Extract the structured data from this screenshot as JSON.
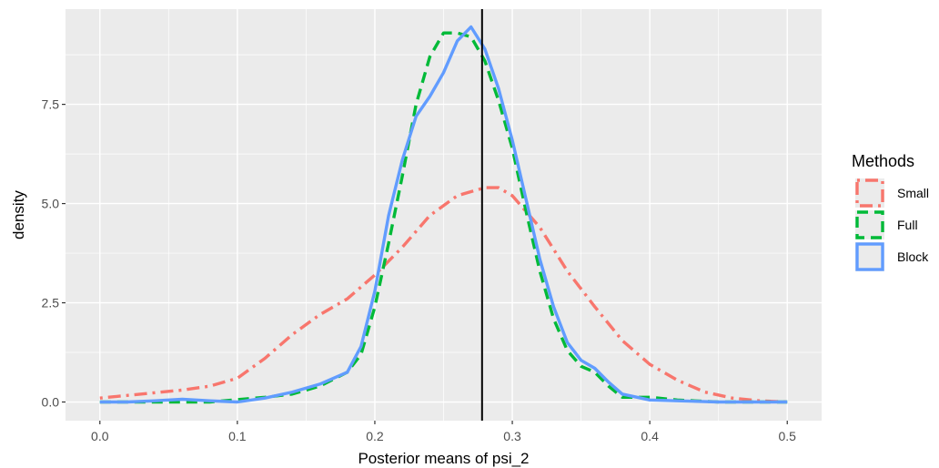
{
  "chart_data": {
    "type": "line",
    "title": "",
    "xlabel": "Posterior means of psi_2",
    "ylabel": "density",
    "xlim": [
      -0.025,
      0.525
    ],
    "ylim": [
      -0.47,
      9.9
    ],
    "x_ticks": [
      0.0,
      0.1,
      0.2,
      0.3,
      0.4,
      0.5
    ],
    "x_tick_labels": [
      "0.0",
      "0.1",
      "0.2",
      "0.3",
      "0.4",
      "0.5"
    ],
    "y_ticks": [
      0.0,
      2.5,
      5.0,
      7.5
    ],
    "y_tick_labels": [
      "0.0",
      "2.5",
      "5.0",
      "7.5"
    ],
    "grid": true,
    "panel_background": "#ebebeb",
    "vertical_line": {
      "x": 0.278,
      "color": "#000000"
    },
    "legend": {
      "title": "Methods",
      "position": "right"
    },
    "series": [
      {
        "name": "Small",
        "color": "#f8766d",
        "dash": "dotdash",
        "x": [
          0.0,
          0.03,
          0.06,
          0.08,
          0.1,
          0.12,
          0.14,
          0.16,
          0.18,
          0.2,
          0.22,
          0.24,
          0.26,
          0.28,
          0.29,
          0.3,
          0.32,
          0.34,
          0.36,
          0.38,
          0.4,
          0.42,
          0.44,
          0.46,
          0.48,
          0.5
        ],
        "y": [
          0.1,
          0.2,
          0.3,
          0.4,
          0.6,
          1.1,
          1.7,
          2.2,
          2.6,
          3.2,
          3.9,
          4.7,
          5.2,
          5.4,
          5.4,
          5.2,
          4.4,
          3.3,
          2.4,
          1.55,
          0.95,
          0.55,
          0.25,
          0.1,
          0.03,
          0.0
        ]
      },
      {
        "name": "Full",
        "color": "#00ba38",
        "dash": "dashed",
        "x": [
          0.0,
          0.04,
          0.08,
          0.12,
          0.14,
          0.16,
          0.18,
          0.19,
          0.2,
          0.21,
          0.22,
          0.23,
          0.24,
          0.25,
          0.26,
          0.27,
          0.28,
          0.29,
          0.3,
          0.31,
          0.32,
          0.33,
          0.34,
          0.35,
          0.36,
          0.37,
          0.38,
          0.4,
          0.42,
          0.45,
          0.5
        ],
        "y": [
          0.0,
          0.0,
          0.0,
          0.12,
          0.2,
          0.4,
          0.75,
          1.2,
          2.4,
          4.0,
          5.7,
          7.5,
          8.7,
          9.3,
          9.3,
          9.2,
          8.6,
          7.6,
          6.4,
          4.8,
          3.3,
          2.1,
          1.3,
          0.9,
          0.75,
          0.4,
          0.12,
          0.12,
          0.05,
          0.0,
          0.0
        ]
      },
      {
        "name": "Block",
        "color": "#619cff",
        "dash": "solid",
        "x": [
          0.0,
          0.02,
          0.04,
          0.06,
          0.08,
          0.1,
          0.12,
          0.14,
          0.16,
          0.18,
          0.19,
          0.2,
          0.21,
          0.22,
          0.23,
          0.24,
          0.25,
          0.26,
          0.27,
          0.28,
          0.29,
          0.3,
          0.31,
          0.32,
          0.33,
          0.34,
          0.35,
          0.36,
          0.37,
          0.38,
          0.4,
          0.42,
          0.45,
          0.5
        ],
        "y": [
          0.0,
          0.0,
          0.03,
          0.07,
          0.03,
          0.0,
          0.1,
          0.25,
          0.45,
          0.75,
          1.4,
          2.8,
          4.7,
          6.1,
          7.2,
          7.7,
          8.3,
          9.1,
          9.45,
          8.9,
          7.9,
          6.6,
          5.1,
          3.6,
          2.4,
          1.5,
          1.05,
          0.85,
          0.5,
          0.2,
          0.05,
          0.03,
          0.0,
          0.0
        ]
      }
    ]
  }
}
